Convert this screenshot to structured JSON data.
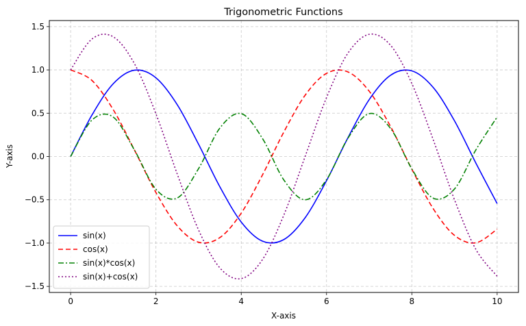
{
  "chart_data": {
    "type": "line",
    "title": "Trigonometric Functions",
    "xlabel": "X-axis",
    "ylabel": "Y-axis",
    "xlim": [
      -0.5,
      10.5
    ],
    "ylim": [
      -1.57,
      1.57
    ],
    "xticks": [
      0,
      2,
      4,
      6,
      8,
      10
    ],
    "xtick_labels": [
      "0",
      "2",
      "4",
      "6",
      "8",
      "10"
    ],
    "yticks": [
      -1.5,
      -1.0,
      -0.5,
      0.0,
      0.5,
      1.0,
      1.5
    ],
    "ytick_labels": [
      "−1.5",
      "−1.0",
      "−0.5",
      "0.0",
      "0.5",
      "1.0",
      "1.5"
    ],
    "grid": true,
    "legend_position": "lower-left",
    "series": [
      {
        "name": "sin(x)",
        "color": "#0000ff",
        "style": "solid",
        "x": [
          0,
          0.5,
          1,
          1.5,
          2,
          2.5,
          3,
          3.5,
          4,
          4.5,
          5,
          5.5,
          6,
          6.5,
          7,
          7.5,
          8,
          8.5,
          9,
          9.5,
          10
        ],
        "y": [
          0.0,
          0.479,
          0.841,
          0.997,
          0.909,
          0.598,
          0.141,
          -0.351,
          -0.757,
          -0.978,
          -0.959,
          -0.706,
          -0.279,
          0.215,
          0.657,
          0.938,
          0.989,
          0.798,
          0.412,
          -0.075,
          -0.544
        ]
      },
      {
        "name": "cos(x)",
        "color": "#ff0000",
        "style": "dashed",
        "x": [
          0,
          0.5,
          1,
          1.5,
          2,
          2.5,
          3,
          3.5,
          4,
          4.5,
          5,
          5.5,
          6,
          6.5,
          7,
          7.5,
          8,
          8.5,
          9,
          9.5,
          10
        ],
        "y": [
          1.0,
          0.878,
          0.54,
          0.071,
          -0.416,
          -0.801,
          -0.99,
          -0.936,
          -0.654,
          -0.211,
          0.284,
          0.709,
          0.96,
          0.977,
          0.754,
          0.347,
          -0.146,
          -0.602,
          -0.911,
          -0.997,
          -0.839
        ]
      },
      {
        "name": "sin(x)*cos(x)",
        "color": "#008000",
        "style": "dashdot",
        "x": [
          0,
          0.5,
          1,
          1.5,
          2,
          2.5,
          3,
          3.5,
          4,
          4.5,
          5,
          5.5,
          6,
          6.5,
          7,
          7.5,
          8,
          8.5,
          9,
          9.5,
          10
        ],
        "y": [
          0.0,
          0.421,
          0.455,
          0.071,
          -0.378,
          -0.479,
          -0.14,
          0.329,
          0.495,
          0.206,
          -0.272,
          -0.5,
          -0.268,
          0.21,
          0.495,
          0.325,
          -0.144,
          -0.481,
          -0.375,
          0.075,
          0.456
        ]
      },
      {
        "name": "sin(x)+cos(x)",
        "color": "#800080",
        "style": "dotted",
        "x": [
          0,
          0.5,
          1,
          1.5,
          2,
          2.5,
          3,
          3.5,
          4,
          4.5,
          5,
          5.5,
          6,
          6.5,
          7,
          7.5,
          8,
          8.5,
          9,
          9.5,
          10
        ],
        "y": [
          1.0,
          1.357,
          1.382,
          1.068,
          0.493,
          -0.203,
          -0.849,
          -1.287,
          -1.41,
          -1.189,
          -0.675,
          0.003,
          0.681,
          1.192,
          1.411,
          1.285,
          0.843,
          0.196,
          -0.499,
          -1.072,
          -1.383
        ]
      }
    ]
  }
}
